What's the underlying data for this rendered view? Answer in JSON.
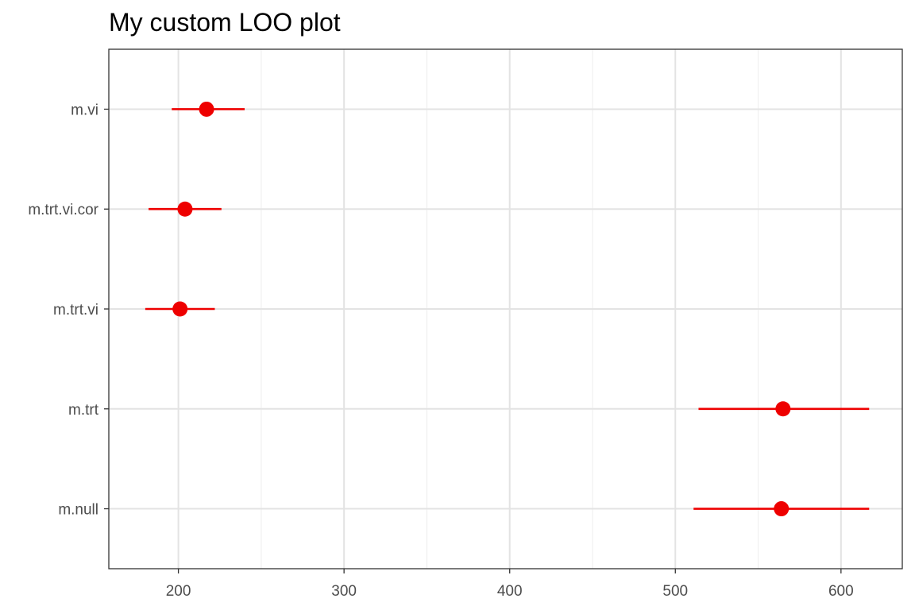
{
  "chart_data": {
    "type": "scatter",
    "title": "My custom LOO plot",
    "xlabel": "",
    "ylabel": "",
    "categories": [
      "m.vi",
      "m.trt.vi.cor",
      "m.trt.vi",
      "m.trt",
      "m.null"
    ],
    "x_ticks": [
      200,
      300,
      400,
      500,
      600
    ],
    "xlim": [
      158,
      637
    ],
    "grid": true,
    "series": [
      {
        "values": [
          {
            "model": "m.vi",
            "estimate": 217,
            "lower": 196,
            "upper": 240
          },
          {
            "model": "m.trt.vi.cor",
            "estimate": 204,
            "lower": 182,
            "upper": 226
          },
          {
            "model": "m.trt.vi",
            "estimate": 201,
            "lower": 180,
            "upper": 222
          },
          {
            "model": "m.trt",
            "estimate": 565,
            "lower": 514,
            "upper": 617
          },
          {
            "model": "m.null",
            "estimate": 564,
            "lower": 511,
            "upper": 617
          }
        ]
      }
    ],
    "colors": {
      "point": "#ee0000",
      "interval": "#ee0000",
      "grid_major": "#e3e3e3",
      "grid_minor": "#f0f0f0",
      "panel_border": "#333333",
      "tick_text": "#4d4d4d",
      "title_text": "#000000"
    }
  }
}
